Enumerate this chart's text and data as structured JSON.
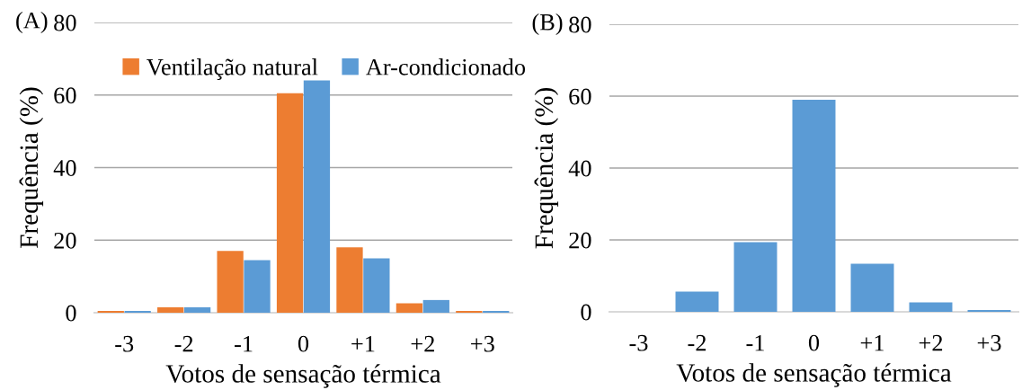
{
  "chart_data": [
    {
      "type": "bar",
      "xlabel": "Votos de sensação térmica",
      "ylabel": "Frequência (%)",
      "annotations": [
        "(A)"
      ],
      "categories": [
        "-3",
        "-2",
        "-1",
        "0",
        "+1",
        "+2",
        "+3"
      ],
      "series": [
        {
          "name": "Ventilação natural",
          "color": "#ed7d31",
          "values": [
            0.5,
            1.5,
            17,
            60.5,
            18,
            2.6,
            0.5
          ]
        },
        {
          "name": "Ar-condicionado",
          "color": "#5b9bd5",
          "values": [
            0.5,
            1.5,
            14.5,
            64,
            15,
            3.5,
            0.5
          ]
        }
      ],
      "ylim": [
        0,
        80
      ],
      "yticks": [
        0,
        20,
        40,
        60,
        80
      ],
      "grid": "y",
      "legend": "top"
    },
    {
      "type": "bar",
      "xlabel": "Votos de sensação térmica",
      "ylabel": "Frequência (%)",
      "annotations": [
        "(B)"
      ],
      "categories": [
        "-3",
        "-2",
        "-1",
        "0",
        "+1",
        "+2",
        "+3"
      ],
      "series": [
        {
          "color": "#5b9bd5",
          "values": [
            0,
            5.6,
            19.4,
            59,
            13.4,
            2.6,
            0.5
          ]
        }
      ],
      "ylim": [
        0,
        80
      ],
      "yticks": [
        0,
        20,
        40,
        60,
        80
      ],
      "grid": "y"
    }
  ]
}
